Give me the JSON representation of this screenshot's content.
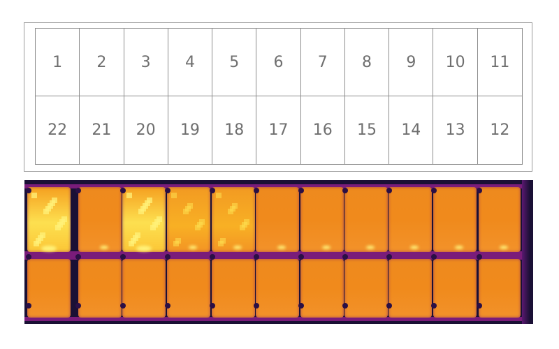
{
  "diagram": {
    "top_row_cells": [
      "1",
      "2",
      "3",
      "4",
      "5",
      "6",
      "7",
      "8",
      "9",
      "10",
      "11"
    ],
    "bottom_row_cells": [
      "22",
      "21",
      "20",
      "19",
      "18",
      "17",
      "16",
      "15",
      "14",
      "13",
      "12"
    ]
  },
  "thermal_image": {
    "palette": {
      "background": "#1a1035",
      "border": "#7a1c7a",
      "cell_normal": "#f08a1c",
      "cell_warm": "#f8b024",
      "cell_hot": "#fde050",
      "hotspot": "#fff27a"
    },
    "top_row_cell_state": [
      "hot",
      "normal",
      "hot",
      "warm",
      "warm",
      "normal",
      "normal",
      "normal",
      "normal",
      "normal",
      "normal"
    ],
    "bottom_row_cell_state": [
      "normal",
      "normal",
      "normal",
      "normal",
      "normal",
      "normal",
      "normal",
      "normal",
      "normal",
      "normal",
      "normal"
    ]
  }
}
